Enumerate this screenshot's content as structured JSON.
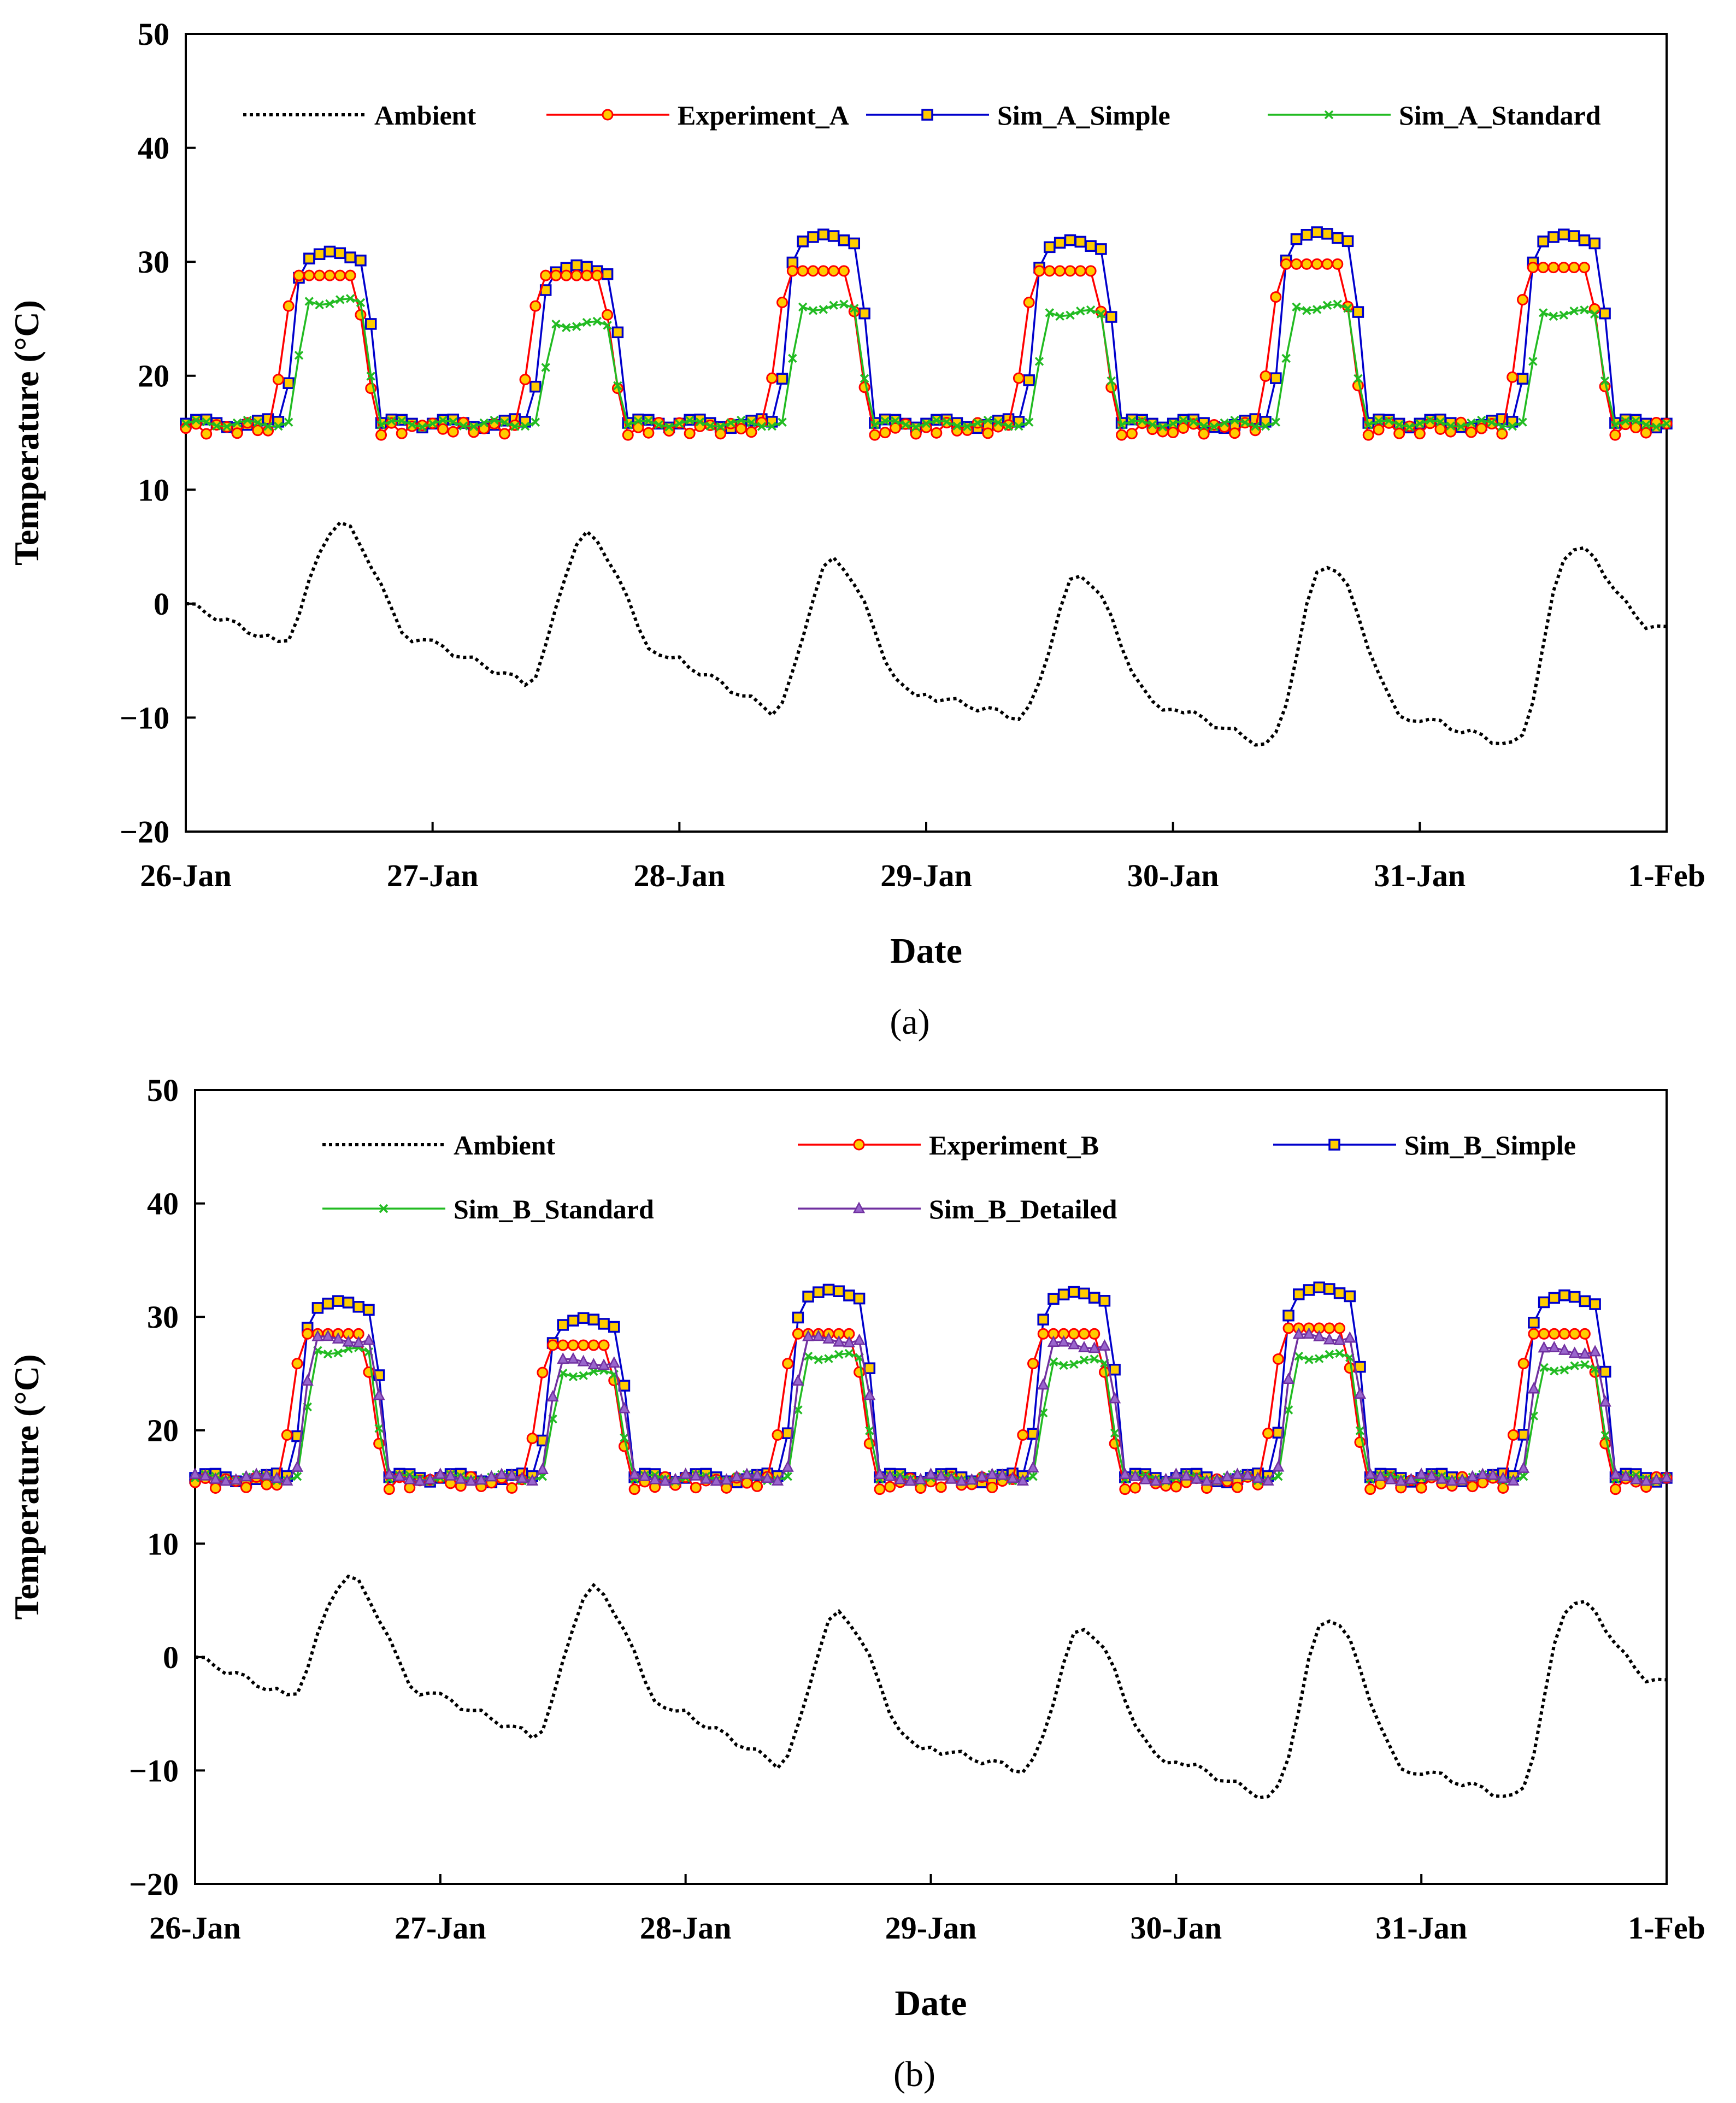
{
  "chart_data": [
    {
      "type": "line",
      "panel_label": "(a)",
      "xlabel": "Date",
      "ylabel": "Temperature (°C)",
      "ylim": [
        -20,
        50
      ],
      "yticks": [
        "−20",
        "−10",
        "0",
        "10",
        "20",
        "30",
        "40",
        "50"
      ],
      "xlim": [
        0,
        6
      ],
      "xticks": [
        "26-Jan",
        "27-Jan",
        "28-Jan",
        "29-Jan",
        "30-Jan",
        "31-Jan",
        "1-Feb"
      ],
      "legend": [
        "Ambient",
        "Experiment_A",
        "Sim_A_Simple",
        "Sim_A_Standard"
      ],
      "colors": {
        "Ambient": "#000000",
        "Experiment": "#ff0000",
        "Simple": "#0000cc",
        "Standard": "#22bb22"
      },
      "days": [
        {
          "amb_start": 0.0,
          "amb_min": -3.5,
          "amb_peak": 7.0,
          "sim_peak": 30.5,
          "exp_peak": 28.8,
          "std_peak": 26.5
        },
        {
          "amb_start": -3.5,
          "amb_min": -7.0,
          "amb_peak": 6.0,
          "sim_peak": 29.3,
          "exp_peak": 28.8,
          "std_peak": 24.5
        },
        {
          "amb_start": -5.0,
          "amb_min": -9.5,
          "amb_peak": 3.8,
          "sim_peak": 32.0,
          "exp_peak": 29.2,
          "std_peak": 26.0
        },
        {
          "amb_start": -8.0,
          "amb_min": -10.0,
          "amb_peak": 2.5,
          "sim_peak": 31.5,
          "exp_peak": 29.2,
          "std_peak": 25.5
        },
        {
          "amb_start": -9.0,
          "amb_min": -12.5,
          "amb_peak": 3.5,
          "sim_peak": 32.2,
          "exp_peak": 29.8,
          "std_peak": 26.0
        },
        {
          "amb_start": -10.0,
          "amb_min": -12.5,
          "amb_peak": 5.0,
          "sim_peak": 32.0,
          "exp_peak": 29.5,
          "std_peak": 25.5
        }
      ],
      "base_temperature": 15.8
    },
    {
      "type": "line",
      "panel_label": "(b)",
      "xlabel": "Date",
      "ylabel": "Temperature (°C)",
      "ylim": [
        -20,
        50
      ],
      "yticks": [
        "−20",
        "−10",
        "0",
        "10",
        "20",
        "30",
        "40",
        "50"
      ],
      "xlim": [
        0,
        6
      ],
      "xticks": [
        "26-Jan",
        "27-Jan",
        "28-Jan",
        "29-Jan",
        "30-Jan",
        "31-Jan",
        "1-Feb"
      ],
      "legend": [
        "Ambient",
        "Experiment_B",
        "Sim_B_Simple",
        "Sim_B_Standard",
        "Sim_B_Detailed"
      ],
      "colors": {
        "Ambient": "#000000",
        "Experiment": "#ff0000",
        "Simple": "#0000cc",
        "Standard": "#22bb22",
        "Detailed": "#7030a0"
      },
      "days": [
        {
          "amb_start": 0.0,
          "amb_min": -3.5,
          "amb_peak": 7.0,
          "sim_peak": 31.0,
          "exp_peak": 28.5,
          "std_peak": 27.0,
          "det_peak": 28.0
        },
        {
          "amb_start": -3.5,
          "amb_min": -7.0,
          "amb_peak": 6.0,
          "sim_peak": 29.5,
          "exp_peak": 27.5,
          "std_peak": 25.0,
          "det_peak": 26.0
        },
        {
          "amb_start": -5.0,
          "amb_min": -9.5,
          "amb_peak": 3.8,
          "sim_peak": 32.0,
          "exp_peak": 28.5,
          "std_peak": 26.5,
          "det_peak": 28.0
        },
        {
          "amb_start": -8.0,
          "amb_min": -10.0,
          "amb_peak": 2.5,
          "sim_peak": 31.8,
          "exp_peak": 28.5,
          "std_peak": 26.0,
          "det_peak": 27.5
        },
        {
          "amb_start": -9.0,
          "amb_min": -12.5,
          "amb_peak": 3.5,
          "sim_peak": 32.2,
          "exp_peak": 29.0,
          "std_peak": 26.5,
          "det_peak": 28.2
        },
        {
          "amb_start": -10.0,
          "amb_min": -12.5,
          "amb_peak": 5.0,
          "sim_peak": 31.5,
          "exp_peak": 28.5,
          "std_peak": 25.5,
          "det_peak": 27.0
        }
      ],
      "base_temperature": 15.8
    }
  ]
}
